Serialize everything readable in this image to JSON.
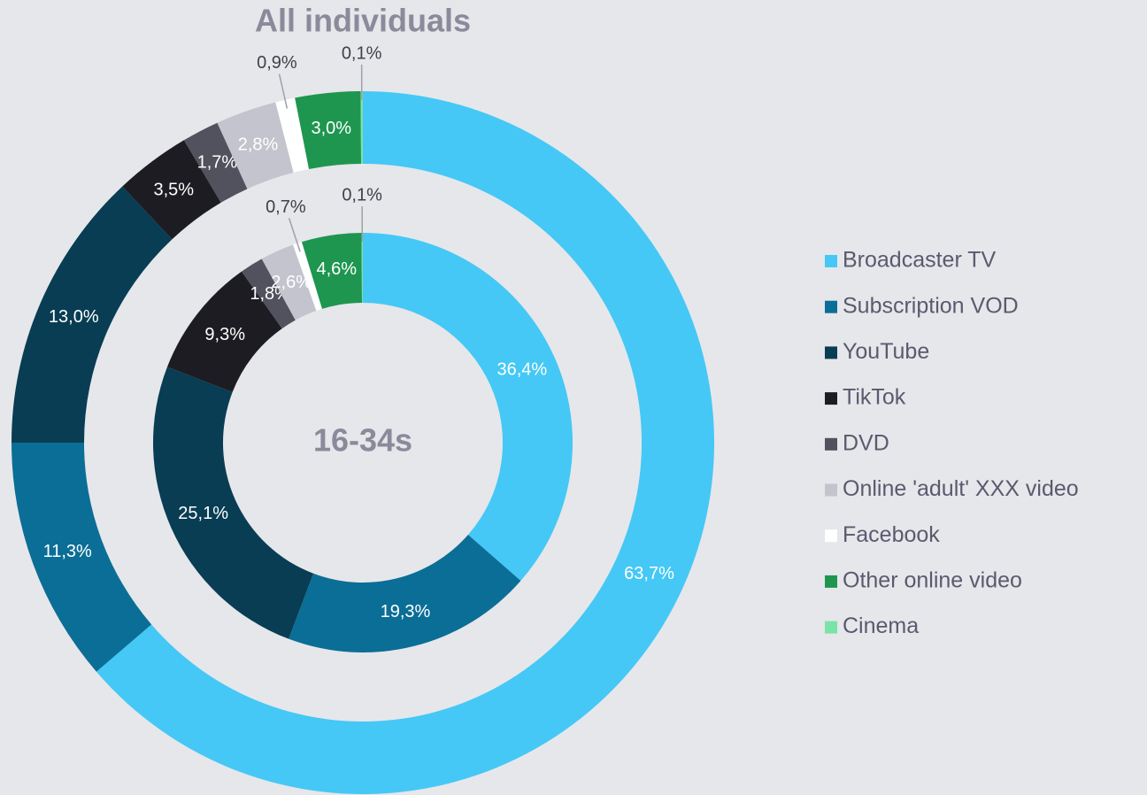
{
  "chart_data": {
    "type": "donut",
    "categories": [
      "Broadcaster TV",
      "Subscription VOD",
      "YouTube",
      "TikTok",
      "DVD",
      "Online 'adult' XXX video",
      "Facebook",
      "Other online video",
      "Cinema"
    ],
    "colors": [
      "#45c8f5",
      "#0b6e96",
      "#083d54",
      "#1c1c22",
      "#52525e",
      "#c4c4ce",
      "#ffffff",
      "#1e9650",
      "#7ae3a8"
    ],
    "legend": "right",
    "series": [
      {
        "name": "All individuals",
        "values": [
          63.7,
          11.3,
          13.0,
          3.5,
          1.7,
          2.8,
          0.9,
          3.0,
          0.1
        ],
        "value_labels": [
          "63,7%",
          "11,3%",
          "13,0%",
          "3,5%",
          "1,7%",
          "2,8%",
          "0,9%",
          "3,0%",
          "0,1%"
        ]
      },
      {
        "name": "16-34s",
        "values": [
          36.4,
          19.3,
          25.1,
          9.3,
          1.8,
          2.6,
          0.7,
          4.6,
          0.1
        ],
        "value_labels": [
          "36,4%",
          "19,3%",
          "25,1%",
          "9,3%",
          "1,8%",
          "2,6%",
          "0,7%",
          "4,6%",
          "0,1%"
        ]
      }
    ]
  }
}
